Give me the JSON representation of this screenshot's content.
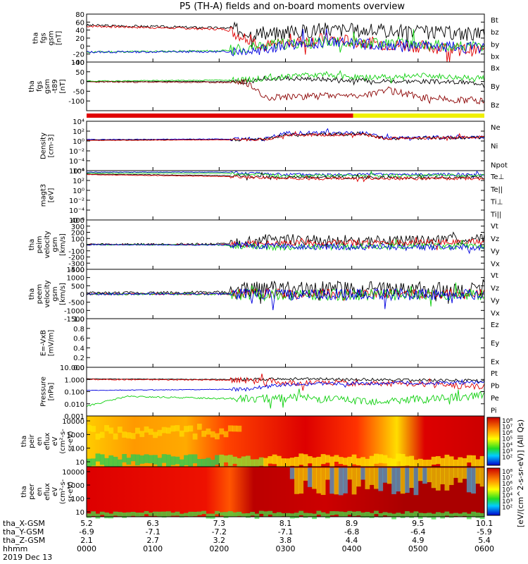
{
  "title": "P5 (TH-A) fields and on-board moments overview",
  "colors": {
    "black": "#000000",
    "red": "#e00000",
    "green": "#10d010",
    "blue": "#0000e0",
    "darkred": "#8b0000",
    "yellow": "#f0f000"
  },
  "chart_data": [
    {
      "type": "line",
      "ylabel": "tha\nfgs\ngsm\n[nT]",
      "ylim": [
        -40,
        80
      ],
      "ticks": [
        80,
        60,
        40,
        20,
        0,
        -20,
        -40
      ],
      "legend": [
        {
          "name": "Bt",
          "color": "black"
        },
        {
          "name": "bz",
          "color": "red"
        },
        {
          "name": "by",
          "color": "green"
        },
        {
          "name": "bx",
          "color": "blue"
        }
      ],
      "series": [
        {
          "name": "Bt",
          "color": "black",
          "seed": 3,
          "amp": 18,
          "x": [
            0,
            0.35,
            0.45,
            0.6,
            0.75,
            1.0
          ],
          "y": [
            52,
            45,
            30,
            42,
            38,
            30
          ]
        },
        {
          "name": "bz",
          "color": "red",
          "seed": 7,
          "amp": 16,
          "x": [
            0,
            0.35,
            0.45,
            0.6,
            0.75,
            1.0
          ],
          "y": [
            50,
            42,
            0,
            18,
            5,
            -12
          ]
        },
        {
          "name": "by",
          "color": "green",
          "seed": 11,
          "amp": 14,
          "x": [
            0,
            0.35,
            0.45,
            0.6,
            0.75,
            1.0
          ],
          "y": [
            -15,
            -12,
            2,
            10,
            8,
            -3
          ]
        },
        {
          "name": "bx",
          "color": "blue",
          "seed": 13,
          "amp": 14,
          "x": [
            0,
            0.35,
            0.45,
            0.6,
            0.75,
            1.0
          ],
          "y": [
            -15,
            -14,
            -5,
            10,
            2,
            -5
          ]
        }
      ]
    },
    {
      "type": "line",
      "ylabel": "tha\nfgs\ngsm\n-t89\n[nT]",
      "ylim": [
        -150,
        100
      ],
      "ticks": [
        100,
        50,
        0,
        -50,
        -100
      ],
      "legend": [
        {
          "name": "Bx",
          "color": "black"
        },
        {
          "name": "By",
          "color": "green"
        },
        {
          "name": "Bz",
          "color": "darkred"
        }
      ],
      "series": [
        {
          "name": "Bx",
          "color": "black",
          "seed": 17,
          "amp": 12,
          "x": [
            0,
            0.4,
            0.5,
            0.7,
            0.85,
            1.0
          ],
          "y": [
            0,
            0,
            18,
            5,
            0,
            -8
          ]
        },
        {
          "name": "By",
          "color": "green",
          "seed": 19,
          "amp": 14,
          "x": [
            0,
            0.4,
            0.55,
            0.7,
            0.85,
            1.0
          ],
          "y": [
            2,
            8,
            35,
            20,
            30,
            10
          ]
        },
        {
          "name": "Bz",
          "color": "darkred",
          "seed": 23,
          "amp": 18,
          "x": [
            0,
            0.4,
            0.45,
            0.7,
            0.75,
            0.85,
            1.0
          ],
          "y": [
            -2,
            -5,
            -80,
            -70,
            -40,
            -85,
            -100
          ]
        }
      ]
    },
    {
      "type": "line",
      "ylabel": "Density\n[cm-3]",
      "ylim": [
        -6,
        4
      ],
      "log": true,
      "ticks": [
        4,
        2,
        0,
        -2,
        -4,
        -6
      ],
      "ticklabels": [
        "10⁴",
        "10²",
        "10⁰",
        "10⁻²",
        "10⁻⁴",
        "10⁻⁶"
      ],
      "legend": [
        {
          "name": "Ne",
          "color": "red"
        },
        {
          "name": "Ni",
          "color": "black"
        },
        {
          "name": "Npot",
          "color": "blue"
        }
      ],
      "series": [
        {
          "name": "Npot",
          "color": "blue",
          "seed": 29,
          "amp": 0.4,
          "x": [
            0,
            0.45,
            0.5,
            0.7,
            0.75,
            1.0
          ],
          "y": [
            0.3,
            0.4,
            1.6,
            1.6,
            0.6,
            0.8
          ]
        },
        {
          "name": "Ni",
          "color": "black",
          "seed": 31,
          "amp": 0.3,
          "x": [
            0,
            0.45,
            0.5,
            0.7,
            0.75,
            1.0
          ],
          "y": [
            0.2,
            0.3,
            1.3,
            1.4,
            0.5,
            0.7
          ]
        },
        {
          "name": "Ne",
          "color": "red",
          "seed": 37,
          "amp": 0.3,
          "x": [
            0,
            0.45,
            0.5,
            0.7,
            0.75,
            1.0
          ],
          "y": [
            0.1,
            0.3,
            1.2,
            1.3,
            0.5,
            0.8
          ]
        }
      ]
    },
    {
      "type": "line",
      "ylabel": "magt3\n[eV]",
      "ylim": [
        -6,
        4
      ],
      "log": true,
      "ticks": [
        4,
        2,
        0,
        -2,
        -4,
        -6
      ],
      "ticklabels": [
        "10⁴",
        "10²",
        "10⁰",
        "10⁻²",
        "10⁻⁴",
        "10⁻⁶"
      ],
      "legend": [
        {
          "name": "Te⊥",
          "color": "red"
        },
        {
          "name": "Te||",
          "color": "black"
        },
        {
          "name": "Ti⊥",
          "color": "blue"
        },
        {
          "name": "Ti||",
          "color": "green"
        }
      ],
      "series": [
        {
          "name": "Ti⊥",
          "color": "blue",
          "seed": 41,
          "amp": 0.3,
          "x": [
            0,
            0.35,
            0.5,
            1.0
          ],
          "y": [
            3.7,
            3.7,
            3.2,
            3.2
          ]
        },
        {
          "name": "Ti||",
          "color": "green",
          "seed": 43,
          "amp": 0.3,
          "x": [
            0,
            0.35,
            0.5,
            1.0
          ],
          "y": [
            3.5,
            3.5,
            3.0,
            3.0
          ]
        },
        {
          "name": "Te||",
          "color": "black",
          "seed": 47,
          "amp": 0.3,
          "x": [
            0,
            0.35,
            0.5,
            1.0
          ],
          "y": [
            3.3,
            3.0,
            2.6,
            2.6
          ]
        },
        {
          "name": "Te⊥",
          "color": "red",
          "seed": 53,
          "amp": 0.3,
          "x": [
            0,
            0.35,
            0.5,
            1.0
          ],
          "y": [
            3.2,
            2.8,
            2.4,
            2.4
          ]
        }
      ]
    },
    {
      "type": "line",
      "ylabel": "tha\npeim\nvelocity\ngsm\n[km/s]",
      "ylim": [
        -400,
        400
      ],
      "ticks": [
        400,
        300,
        200,
        100,
        0,
        -100,
        -200,
        -300,
        -400
      ],
      "legend": [
        {
          "name": "Vt",
          "color": "black"
        },
        {
          "name": "Vz",
          "color": "red"
        },
        {
          "name": "Vy",
          "color": "green"
        },
        {
          "name": "Vx",
          "color": "blue"
        }
      ],
      "series": [
        {
          "name": "Vt",
          "color": "black",
          "seed": 59,
          "amp": 90,
          "x": [
            0,
            0.35,
            0.45,
            0.7,
            1.0
          ],
          "y": [
            5,
            10,
            80,
            60,
            80
          ]
        },
        {
          "name": "Vz",
          "color": "red",
          "seed": 61,
          "amp": 50,
          "x": [
            0,
            0.35,
            0.45,
            0.7,
            1.0
          ],
          "y": [
            0,
            0,
            20,
            30,
            40
          ]
        },
        {
          "name": "Vy",
          "color": "green",
          "seed": 67,
          "amp": 50,
          "x": [
            0,
            0.35,
            0.45,
            0.7,
            1.0
          ],
          "y": [
            0,
            -5,
            -40,
            -30,
            -20
          ]
        },
        {
          "name": "Vx",
          "color": "blue",
          "seed": 71,
          "amp": 50,
          "x": [
            0,
            0.35,
            0.45,
            0.7,
            1.0
          ],
          "y": [
            0,
            -5,
            -20,
            -40,
            -50
          ]
        }
      ]
    },
    {
      "type": "line",
      "ylabel": "tha\npeem\nvelocity\ngsm\n[km/s]",
      "ylim": [
        -1500,
        1500
      ],
      "ticks": [
        1500,
        1000,
        500,
        0,
        -500,
        -1000,
        -1500
      ],
      "legend": [
        {
          "name": "Vt",
          "color": "black"
        },
        {
          "name": "Vz",
          "color": "red"
        },
        {
          "name": "Vy",
          "color": "green"
        },
        {
          "name": "Vx",
          "color": "blue"
        }
      ],
      "series": [
        {
          "name": "Vt",
          "color": "black",
          "seed": 73,
          "amp": 500,
          "x": [
            0,
            0.35,
            0.45,
            1.0
          ],
          "y": [
            50,
            100,
            300,
            250
          ]
        },
        {
          "name": "Vz",
          "color": "red",
          "seed": 79,
          "amp": 300,
          "x": [
            0,
            0.35,
            0.45,
            1.0
          ],
          "y": [
            0,
            0,
            20,
            20
          ]
        },
        {
          "name": "Vy",
          "color": "green",
          "seed": 83,
          "amp": 350,
          "x": [
            0,
            0.35,
            0.45,
            1.0
          ],
          "y": [
            0,
            0,
            -60,
            -40
          ]
        },
        {
          "name": "Vx",
          "color": "blue",
          "seed": 89,
          "amp": 350,
          "x": [
            0,
            0.35,
            0.45,
            1.0
          ],
          "y": [
            0,
            0,
            -40,
            -30
          ]
        }
      ]
    },
    {
      "type": "line",
      "ylabel": "E=-VxB\n[mV/m]",
      "ylim": [
        0,
        1
      ],
      "ticks": [
        1.0,
        0.8,
        0.6,
        0.4,
        0.2,
        0.0
      ],
      "ticklabels": [
        "1.0",
        "0.8",
        "0.6",
        "0.4",
        "0.2",
        "0.0"
      ],
      "legend": [
        {
          "name": "Ez",
          "color": "red"
        },
        {
          "name": "Ey",
          "color": "green"
        },
        {
          "name": "Ex",
          "color": "blue"
        }
      ],
      "series": []
    },
    {
      "type": "line",
      "ylabel": "Pressure\n[nPa]",
      "ylim": [
        -3,
        1
      ],
      "log": true,
      "ticks": [
        1,
        0,
        -1,
        -2,
        -3
      ],
      "ticklabels": [
        "10.000",
        "1.000",
        "0.100",
        "0.010",
        "0.001"
      ],
      "legend": [
        {
          "name": "Pt",
          "color": "black"
        },
        {
          "name": "Pb",
          "color": "red"
        },
        {
          "name": "Pe",
          "color": "green"
        },
        {
          "name": "Pi",
          "color": "blue"
        }
      ],
      "series": [
        {
          "name": "Pt",
          "color": "black",
          "seed": 97,
          "amp": 0.12,
          "x": [
            0,
            0.4,
            0.5,
            1.0
          ],
          "y": [
            0.05,
            0.0,
            0.05,
            -0.1
          ]
        },
        {
          "name": "Pb",
          "color": "red",
          "seed": 101,
          "amp": 0.25,
          "x": [
            0,
            0.4,
            0.5,
            0.75,
            1.0
          ],
          "y": [
            0.0,
            -0.05,
            -0.25,
            -0.3,
            -0.6
          ]
        },
        {
          "name": "Pi",
          "color": "blue",
          "seed": 103,
          "amp": 0.15,
          "x": [
            0,
            0.4,
            0.5,
            0.75,
            1.0
          ],
          "y": [
            -0.9,
            -0.8,
            -0.4,
            -0.3,
            -0.25
          ]
        },
        {
          "name": "Pe",
          "color": "green",
          "seed": 107,
          "amp": 0.35,
          "x": [
            0,
            0.1,
            0.4,
            0.5,
            0.75,
            1.0
          ],
          "y": [
            -2.2,
            -1.4,
            -1.6,
            -1.5,
            -1.8,
            -1.3
          ]
        }
      ]
    },
    {
      "type": "heatmap",
      "ylabel": "tha\npeir\nen\neflux\neV\n(cm²-s-\nsr-eV)",
      "ytickslabels": [
        "10000",
        "1000",
        "100",
        "10"
      ],
      "colorbar": {
        "ticks": [
          "10⁸",
          "10⁷",
          "10⁶",
          "10⁵",
          "10⁴",
          "10³",
          "10²"
        ],
        "label": "[eV/(cm^2-s-sr-eV)] (All Qs)"
      }
    },
    {
      "type": "heatmap",
      "ylabel": "tha\npeer\nen\neflux\neV\n(cm²-s-\nsr-eV)",
      "ytickslabels": [
        "10000",
        "1000",
        "100",
        "10"
      ],
      "colorbar": {
        "ticks": [
          "10⁸",
          "10⁷",
          "10⁶",
          "10⁵",
          "10⁴",
          "10³",
          "10²"
        ]
      }
    }
  ],
  "status_bar": {
    "segments": [
      {
        "from": 0,
        "to": 0.67,
        "color": "red"
      },
      {
        "from": 0.67,
        "to": 1.0,
        "color": "yellow"
      }
    ]
  },
  "xaxis": {
    "rowlabels": [
      "tha_X-GSM",
      "tha_Y-GSM",
      "tha_Z-GSM",
      "hhmm",
      "2019 Dec 13"
    ],
    "ticks": [
      {
        "pos": 0.0,
        "vals": [
          "5.2",
          "-6.9",
          "2.1",
          "0000"
        ]
      },
      {
        "pos": 0.1667,
        "vals": [
          "6.3",
          "-7.1",
          "2.7",
          "0100"
        ]
      },
      {
        "pos": 0.3333,
        "vals": [
          "7.3",
          "-7.2",
          "3.2",
          "0200"
        ]
      },
      {
        "pos": 0.5,
        "vals": [
          "8.1",
          "-7.1",
          "3.8",
          "0300"
        ]
      },
      {
        "pos": 0.6667,
        "vals": [
          "8.9",
          "-6.8",
          "4.4",
          "0400"
        ]
      },
      {
        "pos": 0.8333,
        "vals": [
          "9.5",
          "-6.4",
          "4.9",
          "0500"
        ]
      },
      {
        "pos": 1.0,
        "vals": [
          "10.1",
          "-5.9",
          "5.4",
          "0600"
        ]
      }
    ]
  }
}
